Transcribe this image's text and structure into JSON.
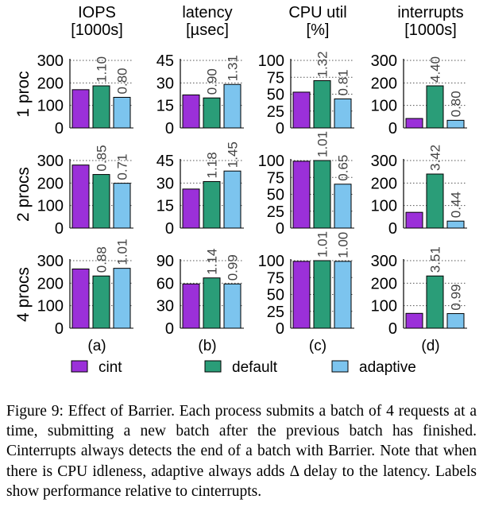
{
  "chart_data": {
    "type": "bar",
    "series_names": [
      "cint",
      "default",
      "adaptive"
    ],
    "colors": {
      "cint": "#9b30d9",
      "default": "#2a9d78",
      "adaptive": "#7cc4ee"
    },
    "columns": [
      {
        "title": [
          "IOPS",
          "[1000s]"
        ],
        "panel_label": "(a)"
      },
      {
        "title": [
          "latency",
          "[µsec]"
        ],
        "panel_label": "(b)"
      },
      {
        "title": [
          "CPU util",
          "[%]"
        ],
        "panel_label": "(c)"
      },
      {
        "title": [
          "interrupts",
          "[1000s]"
        ],
        "panel_label": "(d)"
      }
    ],
    "rows": [
      "1 proc",
      "2 procs",
      "4 procs"
    ],
    "panels": [
      [
        {
          "ylim": [
            0,
            300
          ],
          "yticks": [
            0,
            100,
            200,
            300
          ],
          "values": [
            170,
            187,
            136
          ],
          "labels": [
            "",
            "1.10",
            "0.80"
          ]
        },
        {
          "ylim": [
            0,
            45
          ],
          "yticks": [
            0,
            15,
            30,
            45
          ],
          "values": [
            22,
            20,
            29
          ],
          "labels": [
            "",
            "0.90",
            "1.31"
          ]
        },
        {
          "ylim": [
            0,
            100
          ],
          "yticks": [
            0,
            25,
            50,
            75,
            100
          ],
          "values": [
            53,
            70,
            43
          ],
          "labels": [
            "",
            "1.32",
            "0.81"
          ]
        },
        {
          "ylim": [
            0,
            300
          ],
          "yticks": [
            0,
            100,
            200,
            300
          ],
          "values": [
            42,
            187,
            34
          ],
          "labels": [
            "",
            "4.40",
            "0.80"
          ]
        }
      ],
      [
        {
          "ylim": [
            0,
            300
          ],
          "yticks": [
            0,
            100,
            200,
            300
          ],
          "values": [
            280,
            238,
            199
          ],
          "labels": [
            "",
            "0.85",
            "0.71"
          ]
        },
        {
          "ylim": [
            0,
            45
          ],
          "yticks": [
            0,
            15,
            30,
            45
          ],
          "values": [
            26,
            31,
            38
          ],
          "labels": [
            "",
            "1.18",
            "1.45"
          ]
        },
        {
          "ylim": [
            0,
            100
          ],
          "yticks": [
            0,
            25,
            50,
            75,
            100
          ],
          "values": [
            99,
            100,
            65
          ],
          "labels": [
            "",
            "1.01",
            "0.65"
          ]
        },
        {
          "ylim": [
            0,
            300
          ],
          "yticks": [
            0,
            100,
            200,
            300
          ],
          "values": [
            70,
            240,
            31
          ],
          "labels": [
            "",
            "3.42",
            "0.44"
          ]
        }
      ],
      [
        {
          "ylim": [
            0,
            300
          ],
          "yticks": [
            0,
            100,
            200,
            300
          ],
          "values": [
            263,
            232,
            266
          ],
          "labels": [
            "",
            "0.88",
            "1.01"
          ]
        },
        {
          "ylim": [
            0,
            90
          ],
          "yticks": [
            0,
            30,
            60,
            90
          ],
          "values": [
            59,
            67,
            59
          ],
          "labels": [
            "",
            "1.14",
            "0.99"
          ]
        },
        {
          "ylim": [
            0,
            100
          ],
          "yticks": [
            0,
            25,
            50,
            75,
            100
          ],
          "values": [
            99,
            100,
            99
          ],
          "labels": [
            "",
            "1.01",
            "1.00"
          ]
        },
        {
          "ylim": [
            0,
            300
          ],
          "yticks": [
            0,
            100,
            200,
            300
          ],
          "values": [
            66,
            232,
            65
          ],
          "labels": [
            "",
            "3.51",
            "0.99"
          ]
        }
      ]
    ]
  },
  "legend": [
    {
      "label": "cint",
      "color": "#9b30d9"
    },
    {
      "label": "default",
      "color": "#2a9d78"
    },
    {
      "label": "adaptive",
      "color": "#7cc4ee"
    }
  ],
  "caption": "Figure 9: Effect of Barrier. Each process submits a batch of 4 requests at a time, submitting a new batch after the previous batch has finished. Cinterrupts always detects the end of a batch with Barrier. Note that when there is CPU idleness, adaptive always adds Δ delay to the latency. Labels show performance relative to cinterrupts."
}
